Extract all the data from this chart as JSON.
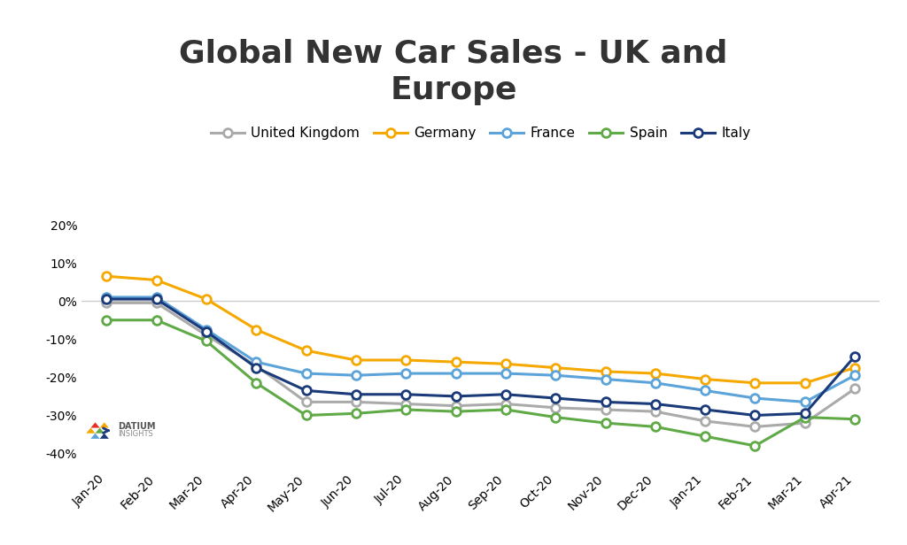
{
  "title": "Global New Car Sales - UK and\nEurope",
  "title_fontsize": 26,
  "title_fontweight": "bold",
  "background_color": "#ffffff",
  "x_labels": [
    "Jan-20",
    "Feb-20",
    "Mar-20",
    "Apr-20",
    "May-20",
    "Jun-20",
    "Jul-20",
    "Aug-20",
    "Sep-20",
    "Oct-20",
    "Nov-20",
    "Dec-20",
    "Jan-21",
    "Feb-21",
    "Mar-21",
    "Apr-21"
  ],
  "series": [
    {
      "name": "United Kingdom",
      "color": "#aaaaaa",
      "data": [
        -0.005,
        -0.005,
        -0.09,
        -0.17,
        -0.265,
        -0.265,
        -0.27,
        -0.275,
        -0.27,
        -0.28,
        -0.285,
        -0.29,
        -0.315,
        -0.33,
        -0.32,
        -0.23
      ]
    },
    {
      "name": "Germany",
      "color": "#f5a800",
      "data": [
        0.065,
        0.055,
        0.005,
        -0.075,
        -0.13,
        -0.155,
        -0.155,
        -0.16,
        -0.165,
        -0.175,
        -0.185,
        -0.19,
        -0.205,
        -0.215,
        -0.215,
        -0.175
      ]
    },
    {
      "name": "France",
      "color": "#5ba3d9",
      "data": [
        0.01,
        0.01,
        -0.075,
        -0.16,
        -0.19,
        -0.195,
        -0.19,
        -0.19,
        -0.19,
        -0.195,
        -0.205,
        -0.215,
        -0.235,
        -0.255,
        -0.265,
        -0.195
      ]
    },
    {
      "name": "Spain",
      "color": "#5faa46",
      "data": [
        -0.05,
        -0.05,
        -0.105,
        -0.215,
        -0.3,
        -0.295,
        -0.285,
        -0.29,
        -0.285,
        -0.305,
        -0.32,
        -0.33,
        -0.355,
        -0.38,
        -0.305,
        -0.31
      ]
    },
    {
      "name": "Italy",
      "color": "#1a3a7a",
      "data": [
        0.005,
        0.005,
        -0.08,
        -0.175,
        -0.235,
        -0.245,
        -0.245,
        -0.25,
        -0.245,
        -0.255,
        -0.265,
        -0.27,
        -0.285,
        -0.3,
        -0.295,
        -0.145
      ]
    }
  ],
  "ylim": [
    -0.44,
    0.275
  ],
  "yticks": [
    -0.4,
    -0.3,
    -0.2,
    -0.1,
    0.0,
    0.1,
    0.2
  ],
  "ytick_labels": [
    "-40%",
    "-30%",
    "-20%",
    "-10%",
    "0%",
    "10%",
    "20%"
  ],
  "grid_color": "#cccccc",
  "legend_fontsize": 11,
  "axis_fontsize": 10,
  "marker": "o",
  "marker_size": 7,
  "linewidth": 2.2
}
